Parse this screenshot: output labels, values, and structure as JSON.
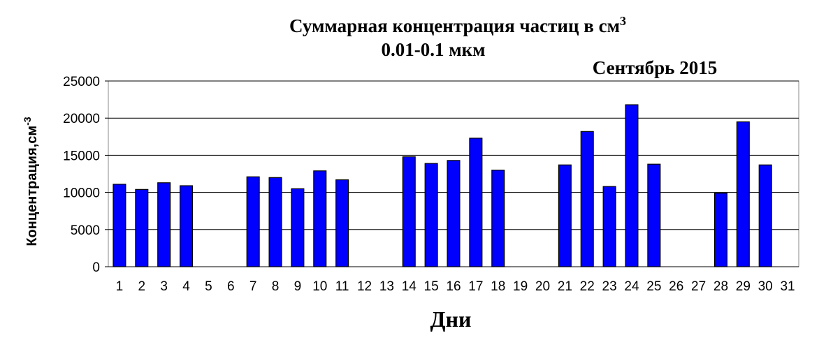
{
  "chart_data": {
    "type": "bar",
    "title": "Суммарная концентрация  частиц  в см",
    "title_superscript": "3",
    "subtitle": "0.01-0.1 мкм",
    "annotation": "Сентябрь 2015",
    "ylabel": "Концентрация,см",
    "ylabel_superscript": "-3",
    "xlabel": "Дни",
    "categories": [
      "1",
      "2",
      "3",
      "4",
      "5",
      "6",
      "7",
      "8",
      "9",
      "10",
      "11",
      "12",
      "13",
      "14",
      "15",
      "16",
      "17",
      "18",
      "19",
      "20",
      "21",
      "22",
      "23",
      "24",
      "25",
      "26",
      "27",
      "28",
      "29",
      "30",
      "31"
    ],
    "values": [
      11100,
      10400,
      11300,
      10900,
      0,
      0,
      12100,
      12000,
      10500,
      12900,
      11700,
      0,
      0,
      14800,
      13900,
      14300,
      17300,
      13000,
      0,
      0,
      13700,
      18200,
      10800,
      21800,
      13800,
      0,
      0,
      9900,
      19500,
      13700,
      0
    ],
    "color": "#0000ff",
    "ylim": [
      0,
      25000
    ],
    "yticks": [
      0,
      5000,
      10000,
      15000,
      20000,
      25000
    ],
    "grid": true
  }
}
